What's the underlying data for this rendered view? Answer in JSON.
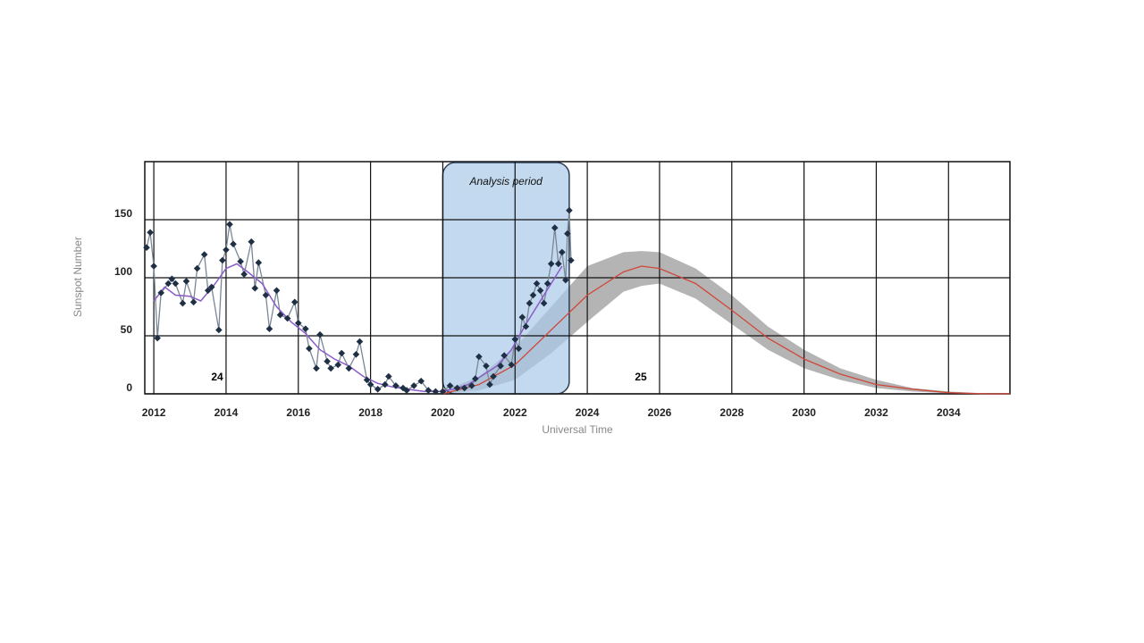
{
  "chart_data": {
    "type": "line",
    "y_label": "Sunspot Number",
    "x_label": "Universal Time",
    "xlim": [
      2011.75,
      2035.7
    ],
    "ylim": [
      0,
      200
    ],
    "xticks": [
      2012,
      2014,
      2016,
      2018,
      2020,
      2022,
      2024,
      2026,
      2028,
      2030,
      2032,
      2034
    ],
    "yticks": [
      0,
      50,
      100,
      150
    ],
    "grid": true,
    "annotations": [
      "24",
      "25",
      "Analysis period"
    ],
    "analysis_period": [
      2020,
      2023.5
    ],
    "series": [
      {
        "color": "#1f3045",
        "line_color": "#7a8796",
        "marker": "diamond",
        "x": [
          2011.8,
          2011.9,
          2012.0,
          2012.1,
          2012.2,
          2012.4,
          2012.5,
          2012.6,
          2012.8,
          2012.9,
          2013.1,
          2013.2,
          2013.4,
          2013.5,
          2013.6,
          2013.8,
          2013.9,
          2014.0,
          2014.1,
          2014.2,
          2014.4,
          2014.5,
          2014.7,
          2014.8,
          2014.9,
          2015.1,
          2015.2,
          2015.4,
          2015.5,
          2015.7,
          2015.9,
          2016.0,
          2016.2,
          2016.3,
          2016.5,
          2016.6,
          2016.8,
          2016.9,
          2017.1,
          2017.2,
          2017.4,
          2017.6,
          2017.7,
          2017.9,
          2018.0,
          2018.2,
          2018.4,
          2018.5,
          2018.7,
          2018.9,
          2019.0,
          2019.2,
          2019.4,
          2019.6,
          2019.8,
          2020.0,
          2020.2,
          2020.4,
          2020.6,
          2020.8,
          2020.9,
          2021.0,
          2021.2,
          2021.3,
          2021.4,
          2021.6,
          2021.7,
          2021.9,
          2022.0,
          2022.1,
          2022.2,
          2022.3,
          2022.4,
          2022.5,
          2022.6,
          2022.7,
          2022.8,
          2022.9,
          2023.0,
          2023.1,
          2023.2,
          2023.3,
          2023.4,
          2023.45,
          2023.5,
          2023.55
        ],
        "values": [
          126,
          139,
          110,
          48,
          87,
          95,
          99,
          95,
          78,
          97,
          79,
          108,
          120,
          89,
          92,
          55,
          115,
          124,
          146,
          129,
          114,
          103,
          131,
          91,
          113,
          85,
          56,
          89,
          68,
          65,
          79,
          61,
          56,
          39,
          22,
          51,
          28,
          22,
          25,
          35,
          22,
          34,
          45,
          12,
          8,
          4,
          8,
          15,
          7,
          5,
          3,
          7,
          11,
          3,
          2,
          2,
          7,
          5,
          5,
          7,
          13,
          32,
          24,
          8,
          15,
          24,
          33,
          25,
          47,
          39,
          66,
          58,
          78,
          85,
          95,
          89,
          78,
          95,
          112,
          143,
          112,
          122,
          98,
          138,
          158,
          115
        ]
      },
      {
        "color": "#8a5cc8",
        "x": [
          2012.0,
          2012.3,
          2012.6,
          2013.0,
          2013.3,
          2013.7,
          2014.0,
          2014.3,
          2014.6,
          2015.0,
          2015.4,
          2015.8,
          2016.2,
          2016.6,
          2017.0,
          2017.4,
          2017.8,
          2018.2,
          2018.6,
          2019.0,
          2019.5,
          2019.9,
          2020.3,
          2020.7,
          2021.1,
          2021.5,
          2021.9,
          2022.3,
          2022.7,
          2023.0,
          2023.3
        ],
        "values": [
          80,
          92,
          85,
          84,
          80,
          95,
          108,
          112,
          105,
          95,
          75,
          62,
          52,
          38,
          30,
          24,
          15,
          9,
          6,
          4,
          2,
          2,
          4,
          8,
          16,
          24,
          38,
          60,
          80,
          95,
          110
        ]
      },
      {
        "color": "#d0473a",
        "band_color": "#b4b4b4",
        "x": [
          2020,
          2021,
          2022,
          2023,
          2024,
          2025,
          2025.5,
          2026,
          2027,
          2028,
          2029,
          2030,
          2031,
          2032,
          2033,
          2034,
          2035,
          2035.7
        ],
        "values": [
          0,
          8,
          25,
          55,
          85,
          105,
          110,
          108,
          95,
          72,
          48,
          30,
          17,
          8,
          4,
          1,
          0,
          0
        ],
        "high": [
          2,
          15,
          40,
          75,
          110,
          122,
          123,
          122,
          108,
          85,
          58,
          38,
          22,
          12,
          5,
          2,
          0.5,
          0
        ],
        "low": [
          0,
          3,
          12,
          35,
          62,
          88,
          93,
          95,
          82,
          60,
          38,
          22,
          12,
          5,
          2,
          0.5,
          0,
          0
        ]
      }
    ]
  }
}
